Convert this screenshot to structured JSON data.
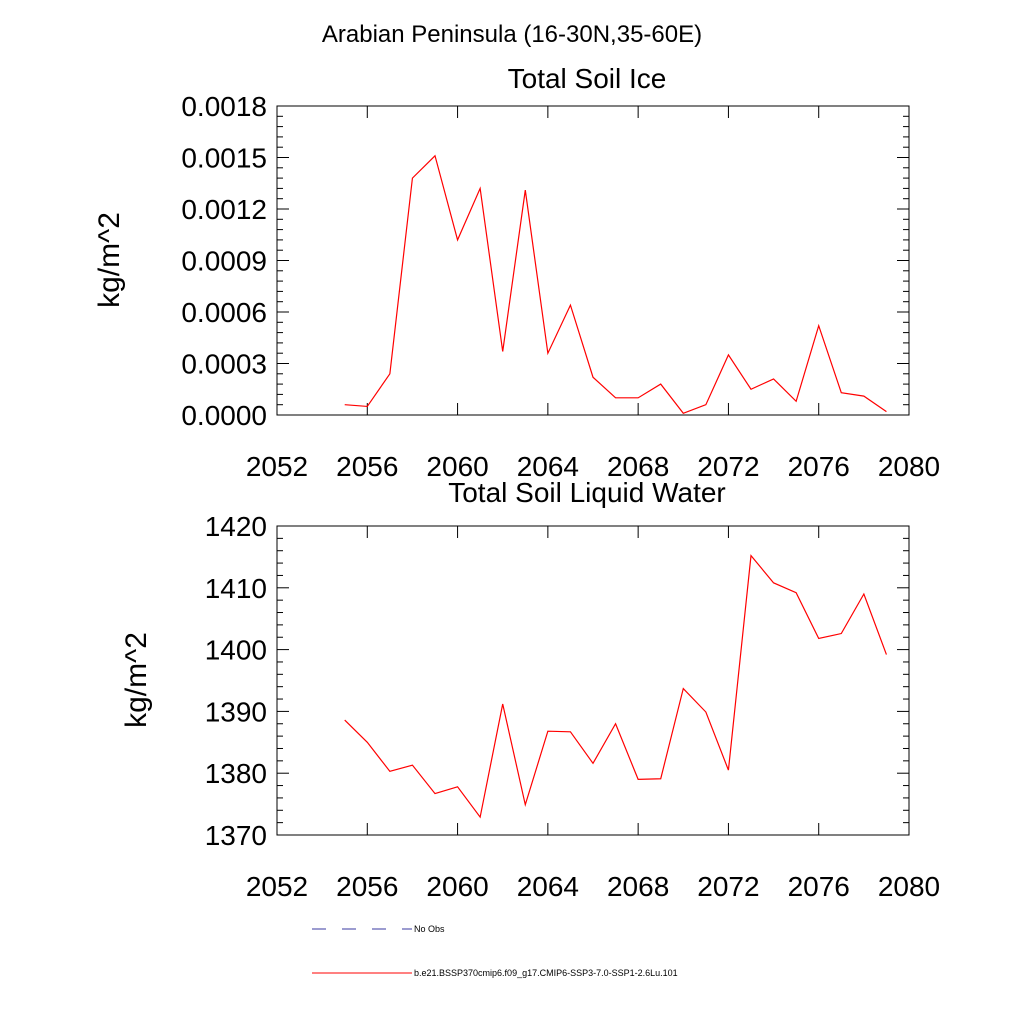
{
  "figure": {
    "title": "Arabian Peninsula (16-30N,35-60E)"
  },
  "legend": {
    "items": [
      {
        "label": "No Obs",
        "color": "#3a3aa0",
        "dash": true
      },
      {
        "label": "b.e21.BSSP370cmip6.f09_g17.CMIP6-SSP3-7.0-SSP1-2.6Lu.101",
        "color": "#ff0000",
        "dash": false
      }
    ]
  },
  "chart_data": [
    {
      "type": "line",
      "title": "Total Soil Ice",
      "ylabel": "kg/m^2",
      "xlabel": "",
      "xlim": [
        2052,
        2080
      ],
      "ylim": [
        0,
        0.0018
      ],
      "x_ticks": [
        "2052",
        "2056",
        "2060",
        "2064",
        "2068",
        "2072",
        "2076",
        "2080"
      ],
      "y_ticks": [
        "0.0000",
        "0.0003",
        "0.0006",
        "0.0009",
        "0.0012",
        "0.0015",
        "0.0018"
      ],
      "series": [
        {
          "color": "#ff0000",
          "x": [
            2055,
            2056,
            2057,
            2058,
            2059,
            2060,
            2061,
            2062,
            2063,
            2064,
            2065,
            2066,
            2067,
            2068,
            2069,
            2070,
            2071,
            2072,
            2073,
            2074,
            2075,
            2076,
            2077,
            2078,
            2079
          ],
          "values": [
            6e-05,
            5e-05,
            0.00024,
            0.00138,
            0.00151,
            0.00102,
            0.00132,
            0.00037,
            0.00131,
            0.00036,
            0.00064,
            0.00022,
            0.0001,
            0.0001,
            0.00018,
            1e-05,
            6e-05,
            0.00035,
            0.00015,
            0.00021,
            8e-05,
            0.00052,
            0.00013,
            0.00011,
            2e-05
          ]
        }
      ]
    },
    {
      "type": "line",
      "title": "Total Soil Liquid Water",
      "ylabel": "kg/m^2",
      "xlabel": "",
      "xlim": [
        2052,
        2080
      ],
      "ylim": [
        1370,
        1420
      ],
      "x_ticks": [
        "2052",
        "2056",
        "2060",
        "2064",
        "2068",
        "2072",
        "2076",
        "2080"
      ],
      "y_ticks": [
        "1370",
        "1380",
        "1390",
        "1400",
        "1410",
        "1420"
      ],
      "series": [
        {
          "color": "#ff0000",
          "x": [
            2055,
            2056,
            2057,
            2058,
            2059,
            2060,
            2061,
            2062,
            2063,
            2064,
            2065,
            2066,
            2067,
            2068,
            2069,
            2070,
            2071,
            2072,
            2073,
            2074,
            2075,
            2076,
            2077,
            2078,
            2079
          ],
          "values": [
            1388.6,
            1385.0,
            1380.3,
            1381.3,
            1376.7,
            1377.8,
            1372.9,
            1391.2,
            1374.9,
            1386.8,
            1386.7,
            1381.6,
            1388.0,
            1379.0,
            1379.1,
            1393.7,
            1389.9,
            1380.5,
            1415.2,
            1410.8,
            1409.2,
            1401.8,
            1402.6,
            1409.0,
            1399.2
          ]
        }
      ]
    }
  ]
}
